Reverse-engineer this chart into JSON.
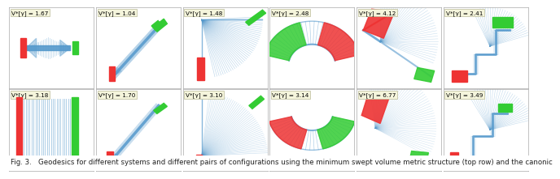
{
  "caption": "Fig. 3.   Geodesics for different systems and different pairs of configurations using the minimum swept volume metric structure (top row) and the canonic",
  "top_row_labels": [
    "V*[γ] = 1.67",
    "V*[γ] = 1.04",
    "V*[γ] = 1.48",
    "V*[γ] = 2.48",
    "V*[γ] = 4.12",
    "V*[γ] = 2.41"
  ],
  "bottom_row_labels": [
    "V*[γ] = 3.18",
    "V*[γ] = 1.70",
    "V*[γ] = 3.10",
    "V*[γ] = 3.14",
    "V*[γ] = 6.77",
    "V*[γ] = 3.49"
  ],
  "n_cols": 6,
  "n_rows": 2,
  "background_color": "#ffffff",
  "cell_bg": "#ffffff",
  "label_box_color": "#f5f5dc",
  "label_box_edge": "#bbbb99",
  "blue": "#5599cc",
  "red": "#ee3333",
  "green": "#33cc33",
  "label_fontsize": 5.2,
  "caption_fontsize": 6.2,
  "fig_width": 6.4,
  "fig_height": 2.21
}
